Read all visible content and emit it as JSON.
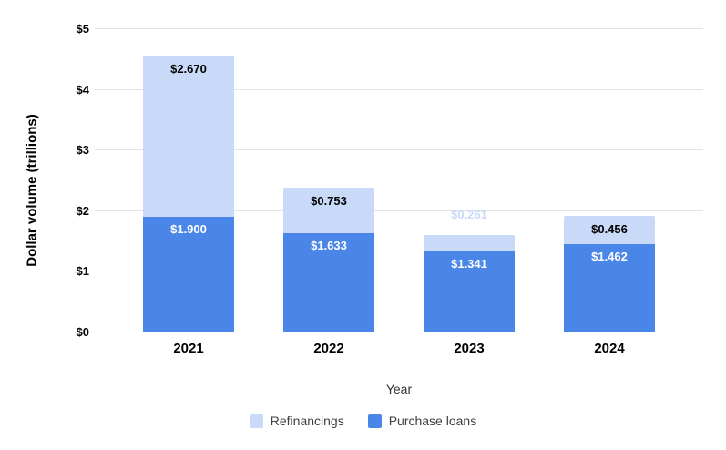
{
  "chart_data": {
    "type": "bar",
    "stacked": true,
    "title": "",
    "xlabel": "Year",
    "ylabel": "Dollar volume (trillions)",
    "categories": [
      "2021",
      "2022",
      "2023",
      "2024"
    ],
    "series": [
      {
        "name": "Purchase loans",
        "color": "#4a86e8",
        "values": [
          1.9,
          1.633,
          1.341,
          1.462
        ],
        "labels": [
          "$1.900",
          "$1.633",
          "$1.341",
          "$1.462"
        ],
        "label_color": "#ffffff"
      },
      {
        "name": "Refinancings",
        "color": "#c9daf8",
        "values": [
          2.67,
          0.753,
          0.261,
          0.456
        ],
        "labels": [
          "$2.670",
          "$0.753",
          "$0.261",
          "$0.456"
        ],
        "label_color": "#000000"
      }
    ],
    "legend": [
      {
        "label": "Refinancings",
        "color": "#c9daf8"
      },
      {
        "label": "Purchase loans",
        "color": "#4a86e8"
      }
    ],
    "legend_position": "bottom",
    "grid": true,
    "ylim": [
      0,
      5
    ],
    "yticks": [
      {
        "value": 0,
        "label": "$0"
      },
      {
        "value": 1,
        "label": "$1"
      },
      {
        "value": 2,
        "label": "$2"
      },
      {
        "value": 3,
        "label": "$3"
      },
      {
        "value": 4,
        "label": "$4"
      },
      {
        "value": 5,
        "label": "$5"
      }
    ],
    "colors": {
      "gridline": "#e3e3e3",
      "axis_line": "#424242",
      "tick_label": "#000000",
      "outside_label_series": "Refinancings"
    }
  }
}
